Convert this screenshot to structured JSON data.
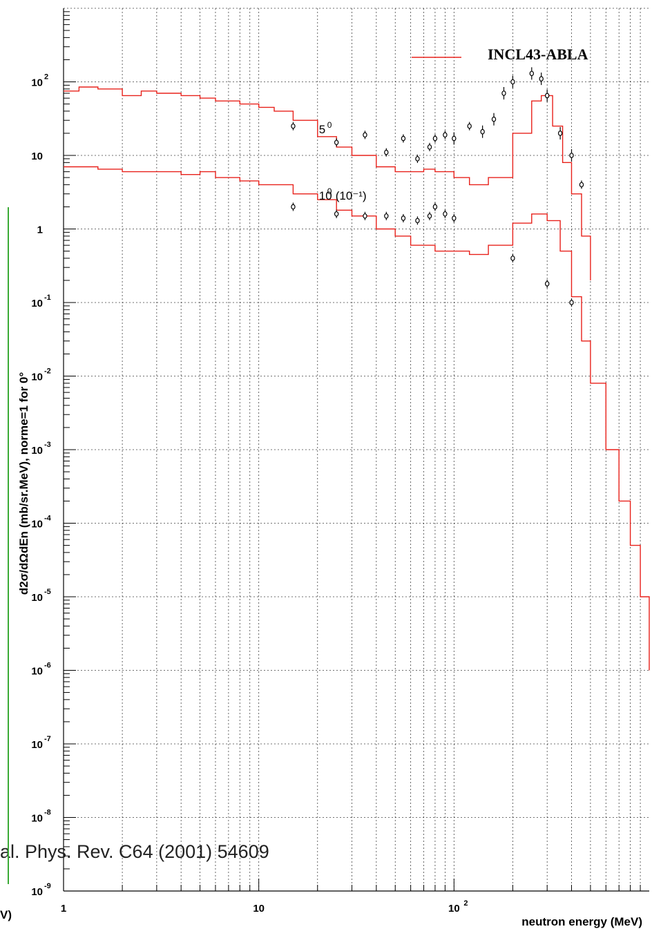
{
  "chart_data": {
    "type": "scatter",
    "xlabel": "neutron energy (MeV)",
    "ylabel": "d2σ/dΩdEn (mb/sr.MeV), norme=1 for 0°",
    "xscale": "log",
    "yscale": "log",
    "xlim": [
      1,
      1000
    ],
    "ylim": [
      1e-09,
      1000.0
    ],
    "grid": true,
    "legend": {
      "label": "INCL43-ABLA",
      "color": "#e8201a",
      "position": "top-right"
    },
    "reference_text": "al. Phys. Rev. C64 (2001) 54609",
    "left_partial_label": "V)",
    "x_ticks": [
      {
        "base": "1",
        "exp": ""
      },
      {
        "base": "10",
        "exp": ""
      },
      {
        "base": "10",
        "exp": "2"
      }
    ],
    "y_ticks": [
      {
        "base": "10",
        "exp": "2"
      },
      {
        "base": "10",
        "exp": ""
      },
      {
        "base": "1",
        "exp": ""
      },
      {
        "base": "10",
        "exp": "-1"
      },
      {
        "base": "10",
        "exp": "-2"
      },
      {
        "base": "10",
        "exp": "-3"
      },
      {
        "base": "10",
        "exp": "-4"
      },
      {
        "base": "10",
        "exp": "-5"
      },
      {
        "base": "10",
        "exp": "-6"
      },
      {
        "base": "10",
        "exp": "-7"
      },
      {
        "base": "10",
        "exp": "-8"
      },
      {
        "base": "10",
        "exp": "-9"
      }
    ],
    "series": [
      {
        "angle": "5",
        "factor": "",
        "label_energy": 20,
        "label_value": 20,
        "calc": {
          "e": [
            1,
            1.2,
            1.5,
            2,
            2.5,
            3,
            4,
            5,
            6,
            8,
            10,
            12,
            15,
            20,
            25,
            30,
            40,
            50,
            60,
            70,
            80,
            100,
            120,
            150,
            200,
            250,
            280,
            320,
            360,
            400,
            450,
            500
          ],
          "v": [
            75,
            85,
            80,
            65,
            75,
            70,
            65,
            60,
            55,
            50,
            45,
            40,
            30,
            18,
            13,
            10,
            7,
            6,
            6,
            6.5,
            6,
            5,
            4,
            5,
            20,
            55,
            65,
            25,
            8,
            3,
            0.8,
            0.2
          ]
        },
        "exp": [
          [
            15,
            25,
            2
          ],
          [
            25,
            15,
            2
          ],
          [
            35,
            19,
            2
          ],
          [
            45,
            11,
            2
          ],
          [
            55,
            17,
            2
          ],
          [
            65,
            9,
            2
          ],
          [
            75,
            13,
            2
          ],
          [
            80,
            17,
            2
          ],
          [
            90,
            19,
            2
          ],
          [
            100,
            17,
            3
          ],
          [
            120,
            25,
            2
          ],
          [
            140,
            21,
            3
          ],
          [
            160,
            31,
            3
          ],
          [
            180,
            70,
            3
          ],
          [
            200,
            100,
            3
          ],
          [
            250,
            130,
            3
          ],
          [
            280,
            110,
            3
          ],
          [
            300,
            65,
            3
          ],
          [
            350,
            20,
            3
          ],
          [
            400,
            10,
            3
          ],
          [
            450,
            4,
            2
          ]
        ]
      },
      {
        "angle": "10",
        "factor": "10⁻¹",
        "label_energy": 20,
        "label_value": 2.5,
        "calc": {
          "e": [
            1,
            1.5,
            2,
            3,
            4,
            5,
            6,
            8,
            10,
            15,
            20,
            25,
            30,
            40,
            50,
            60,
            80,
            100,
            120,
            150,
            200,
            250,
            300,
            350,
            400,
            450,
            500,
            600,
            700,
            800,
            900,
            1000
          ],
          "v": [
            7,
            6.5,
            6,
            6,
            5.5,
            6,
            5,
            4.5,
            4,
            3,
            2.5,
            1.8,
            1.5,
            1,
            0.8,
            0.6,
            0.5,
            0.5,
            0.45,
            0.6,
            1.2,
            1.6,
            1.3,
            0.5,
            0.12,
            0.03,
            0.008,
            0.001,
            0.0002,
            5e-05,
            1e-05,
            1e-06
          ]
        },
        "exp": [
          [
            15,
            2,
            2
          ],
          [
            25,
            1.6,
            2
          ],
          [
            35,
            1.5,
            2
          ],
          [
            45,
            1.5,
            2
          ],
          [
            55,
            1.4,
            2
          ],
          [
            65,
            1.3,
            2
          ],
          [
            75,
            1.5,
            2
          ],
          [
            80,
            2,
            2
          ],
          [
            90,
            1.6,
            2
          ],
          [
            100,
            1.4,
            2
          ],
          [
            200,
            0.4,
            2
          ],
          [
            300,
            0.18,
            2
          ],
          [
            400,
            0.1,
            2
          ]
        ]
      }
    ]
  }
}
